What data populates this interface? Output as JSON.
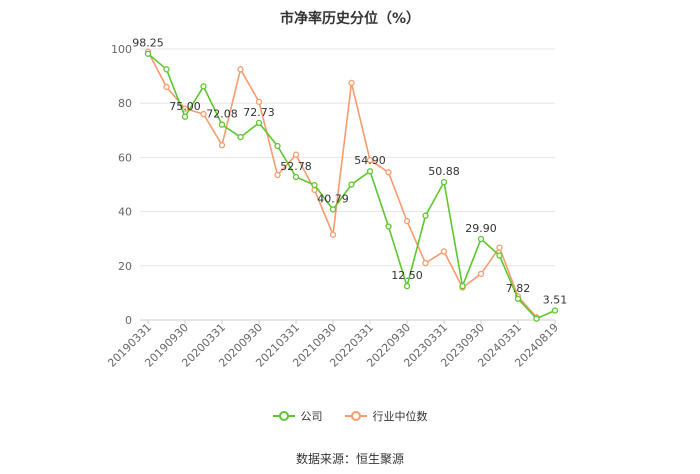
{
  "chart_data": {
    "type": "line",
    "title": "市净率历史分位（%）",
    "x_tick_labels": [
      "20190331",
      "20190930",
      "20200331",
      "20200930",
      "20210331",
      "20210930",
      "20220331",
      "20220930",
      "20230331",
      "20230930",
      "20240331",
      "20240819"
    ],
    "ylim": [
      0,
      100
    ],
    "y_ticks": [
      0,
      20,
      40,
      60,
      80,
      100
    ],
    "grid": true,
    "legend_position": "bottom",
    "source": "数据来源：恒生聚源",
    "series": [
      {
        "name": "公司",
        "color": "#5cc72e",
        "values": [
          98.25,
          92.5,
          75.0,
          86.2,
          72.08,
          67.5,
          72.73,
          64.2,
          52.78,
          49.8,
          40.79,
          50.0,
          54.9,
          34.5,
          12.5,
          38.5,
          50.88,
          12.5,
          29.9,
          23.8,
          7.82,
          0.5,
          3.51
        ],
        "labels": {
          "0": "98.25",
          "2": "75.00",
          "4": "72.08",
          "6": "72.73",
          "8": "52.78",
          "10": "40.79",
          "12": "54.90",
          "14": "12.50",
          "16": "50.88",
          "18": "29.90",
          "20": "7.82",
          "22": "3.51"
        }
      },
      {
        "name": "行业中位数",
        "color": "#f79b6f",
        "values": [
          99.0,
          86.0,
          78.0,
          76.0,
          64.5,
          92.5,
          80.5,
          53.5,
          61.0,
          48.0,
          31.5,
          87.5,
          59.0,
          54.5,
          36.5,
          21.0,
          25.3,
          12.0,
          17.0,
          26.7,
          8.7,
          1.0,
          null
        ]
      }
    ]
  }
}
